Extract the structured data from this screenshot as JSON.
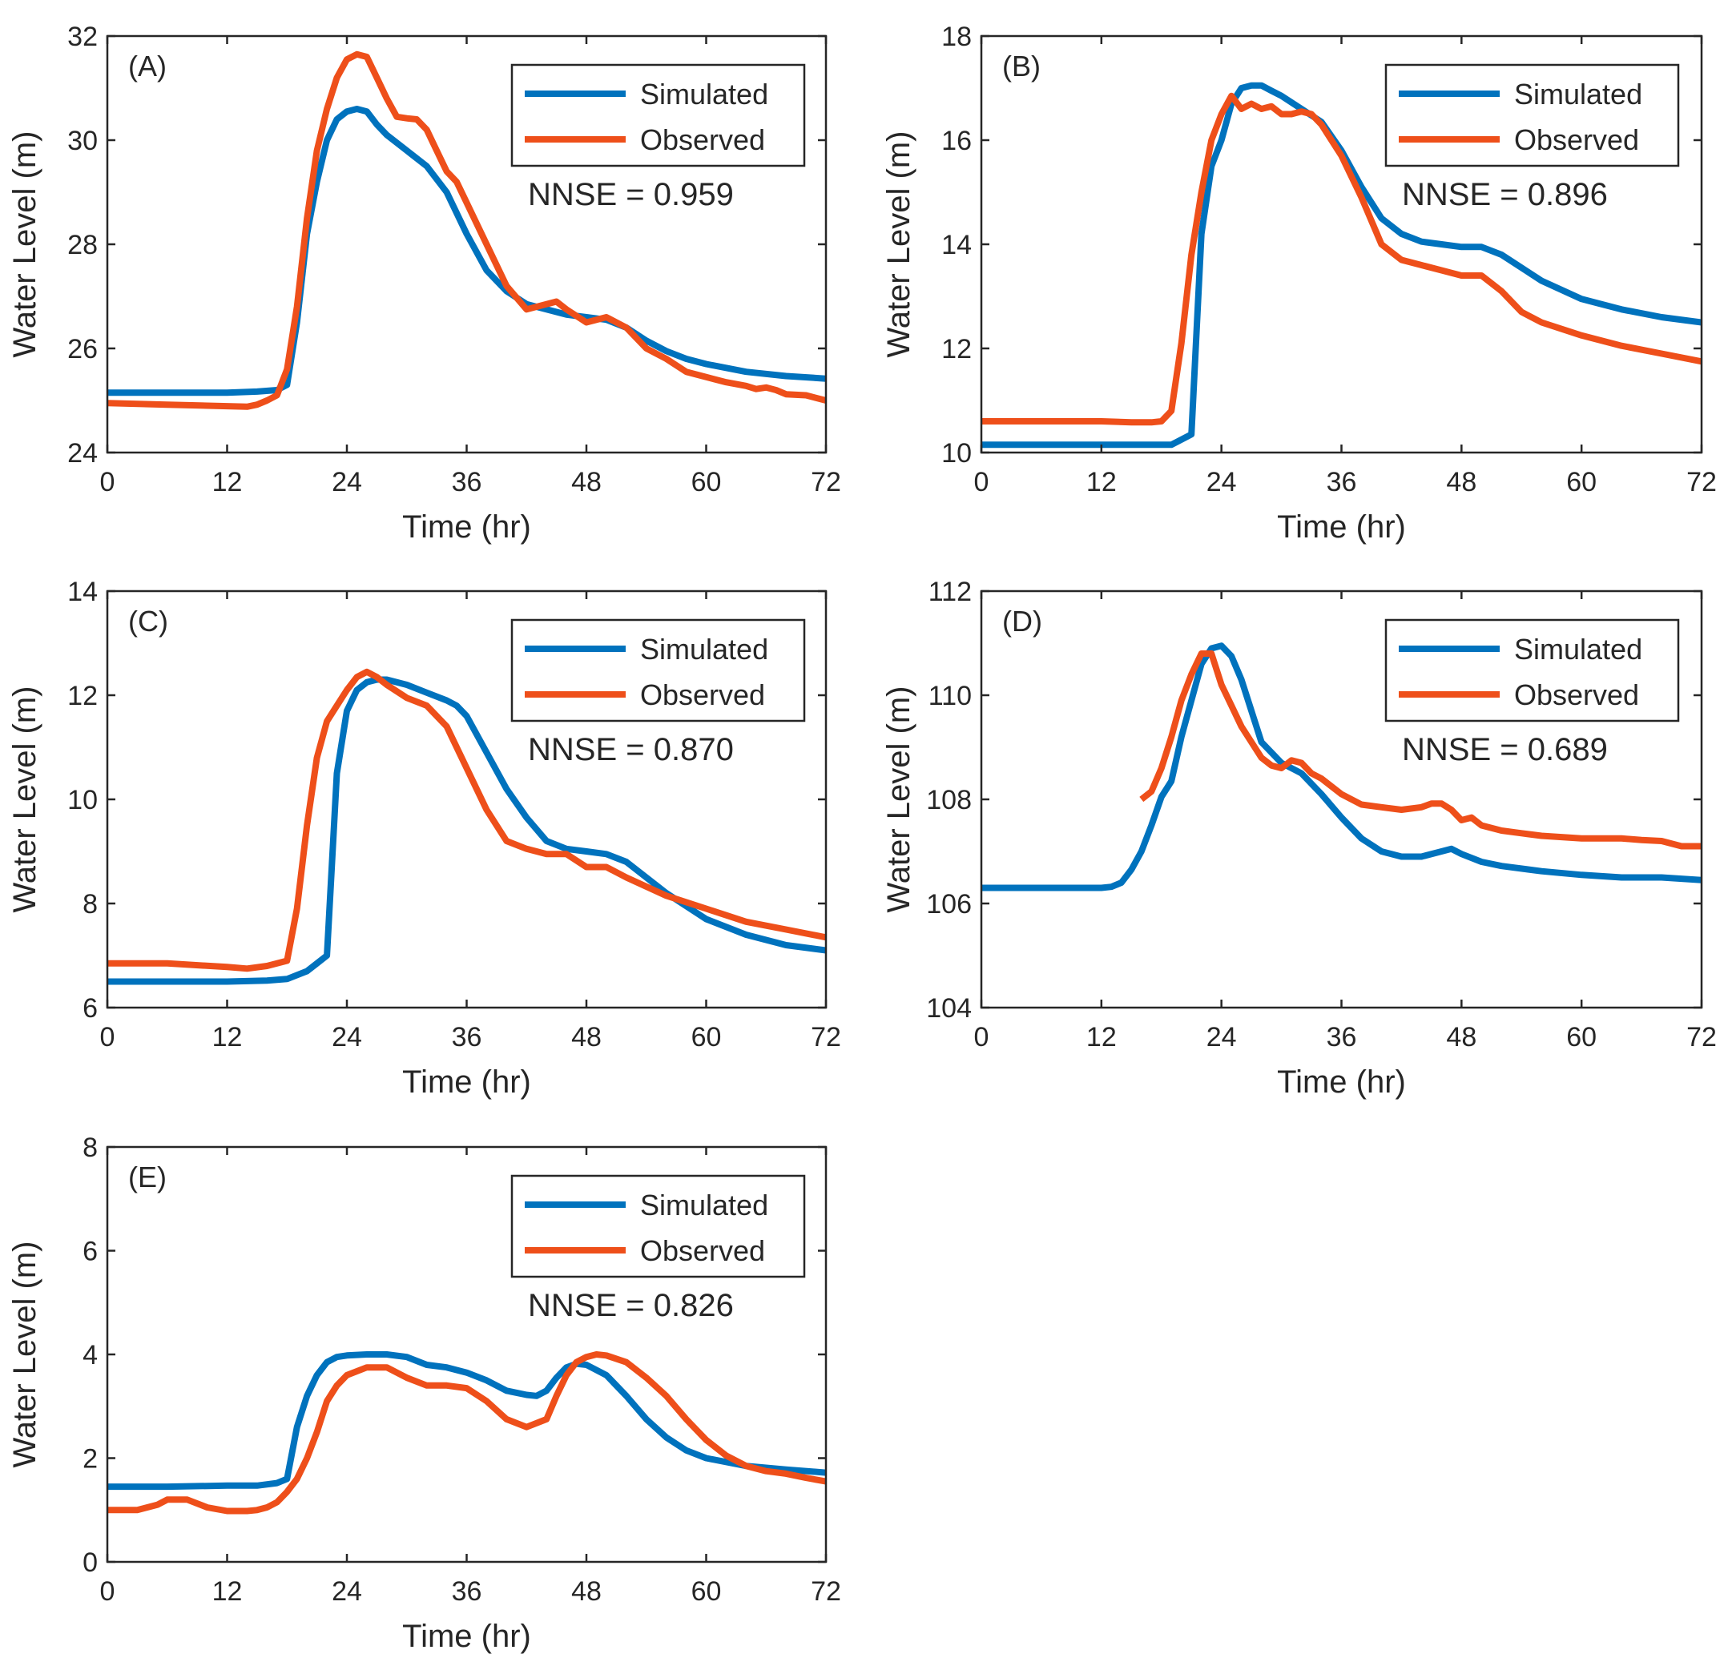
{
  "figure": {
    "background": "#ffffff",
    "axis_color": "#262626"
  },
  "series_colors": {
    "Simulated": "#0072BD",
    "Observed": "#EE4F1A"
  },
  "chart_data": [
    {
      "type": "line",
      "panel": "(A)",
      "xlabel": "Time (hr)",
      "ylabel": "Water Level (m)",
      "xlim": [
        0,
        72
      ],
      "ylim": [
        24,
        32
      ],
      "xticks": [
        0,
        12,
        24,
        36,
        48,
        60,
        72
      ],
      "yticks": [
        24,
        26,
        28,
        30,
        32
      ],
      "legend": [
        "Simulated",
        "Observed"
      ],
      "legend_position": "top-right",
      "annotation": "NNSE = 0.959",
      "series": [
        {
          "name": "Simulated",
          "x": [
            0,
            6,
            12,
            15,
            17,
            18,
            19,
            20,
            21,
            22,
            23,
            24,
            25,
            26,
            27,
            28,
            30,
            32,
            34,
            36,
            38,
            40,
            42,
            44,
            46,
            48,
            50,
            52,
            54,
            56,
            58,
            60,
            64,
            68,
            72
          ],
          "y": [
            25.15,
            25.15,
            25.15,
            25.17,
            25.2,
            25.3,
            26.5,
            28.2,
            29.2,
            30.0,
            30.4,
            30.55,
            30.6,
            30.55,
            30.3,
            30.1,
            29.8,
            29.5,
            29.0,
            28.2,
            27.5,
            27.1,
            26.85,
            26.75,
            26.65,
            26.6,
            26.55,
            26.4,
            26.15,
            25.95,
            25.8,
            25.7,
            25.55,
            25.47,
            25.42
          ]
        },
        {
          "name": "Observed",
          "x": [
            0,
            6,
            10,
            14,
            15,
            16,
            17,
            18,
            19,
            20,
            21,
            22,
            23,
            24,
            25,
            26,
            27,
            28,
            29,
            30,
            31,
            32,
            33,
            34,
            35,
            36,
            38,
            40,
            42,
            44,
            45,
            46,
            48,
            49,
            50,
            52,
            54,
            56,
            58,
            60,
            62,
            64,
            65,
            66,
            67,
            68,
            70,
            72
          ],
          "y": [
            24.95,
            24.92,
            24.9,
            24.88,
            24.92,
            25.0,
            25.1,
            25.6,
            26.8,
            28.5,
            29.8,
            30.6,
            31.2,
            31.55,
            31.65,
            31.6,
            31.2,
            30.8,
            30.45,
            30.42,
            30.4,
            30.2,
            29.8,
            29.4,
            29.2,
            28.8,
            28.0,
            27.2,
            26.75,
            26.85,
            26.9,
            26.75,
            26.5,
            26.55,
            26.6,
            26.4,
            26.0,
            25.8,
            25.55,
            25.45,
            25.35,
            25.28,
            25.22,
            25.25,
            25.2,
            25.12,
            25.1,
            25.0
          ]
        }
      ]
    },
    {
      "type": "line",
      "panel": "(B)",
      "xlabel": "Time (hr)",
      "ylabel": "Water Level (m)",
      "xlim": [
        0,
        72
      ],
      "ylim": [
        10,
        18
      ],
      "xticks": [
        0,
        12,
        24,
        36,
        48,
        60,
        72
      ],
      "yticks": [
        10,
        12,
        14,
        16,
        18
      ],
      "legend": [
        "Simulated",
        "Observed"
      ],
      "legend_position": "top-right",
      "annotation": "NNSE = 0.896",
      "series": [
        {
          "name": "Simulated",
          "x": [
            0,
            6,
            12,
            16,
            19,
            20,
            21,
            22,
            23,
            24,
            25,
            26,
            27,
            28,
            29,
            30,
            32,
            34,
            36,
            38,
            40,
            42,
            44,
            46,
            48,
            50,
            52,
            56,
            60,
            64,
            68,
            72
          ],
          "y": [
            10.15,
            10.15,
            10.15,
            10.15,
            10.15,
            10.25,
            10.35,
            14.2,
            15.5,
            16.0,
            16.7,
            17.0,
            17.05,
            17.05,
            16.95,
            16.85,
            16.6,
            16.35,
            15.8,
            15.1,
            14.5,
            14.2,
            14.05,
            14.0,
            13.95,
            13.95,
            13.8,
            13.3,
            12.95,
            12.75,
            12.6,
            12.5
          ]
        },
        {
          "name": "Observed",
          "x": [
            0,
            6,
            12,
            15,
            17,
            18,
            19,
            20,
            21,
            22,
            23,
            24,
            25,
            26,
            27,
            28,
            29,
            30,
            31,
            32,
            33,
            34,
            36,
            38,
            40,
            42,
            44,
            46,
            48,
            50,
            52,
            54,
            56,
            60,
            64,
            68,
            72
          ],
          "y": [
            10.6,
            10.6,
            10.6,
            10.58,
            10.58,
            10.6,
            10.8,
            12.1,
            13.8,
            15.0,
            16.0,
            16.5,
            16.85,
            16.6,
            16.7,
            16.6,
            16.65,
            16.5,
            16.5,
            16.55,
            16.5,
            16.3,
            15.7,
            14.9,
            14.0,
            13.7,
            13.6,
            13.5,
            13.4,
            13.4,
            13.1,
            12.7,
            12.5,
            12.25,
            12.05,
            11.9,
            11.75
          ]
        }
      ]
    },
    {
      "type": "line",
      "panel": "(C)",
      "xlabel": "Time (hr)",
      "ylabel": "Water Level (m)",
      "xlim": [
        0,
        72
      ],
      "ylim": [
        6,
        14
      ],
      "xticks": [
        0,
        12,
        24,
        36,
        48,
        60,
        72
      ],
      "yticks": [
        6,
        8,
        10,
        12,
        14
      ],
      "legend": [
        "Simulated",
        "Observed"
      ],
      "legend_position": "top-right",
      "annotation": "NNSE = 0.870",
      "series": [
        {
          "name": "Simulated",
          "x": [
            0,
            6,
            12,
            16,
            18,
            20,
            21,
            22,
            23,
            24,
            25,
            26,
            27,
            28,
            30,
            32,
            34,
            35,
            36,
            38,
            40,
            42,
            44,
            46,
            48,
            50,
            52,
            56,
            60,
            64,
            68,
            72
          ],
          "y": [
            6.5,
            6.5,
            6.5,
            6.52,
            6.55,
            6.7,
            6.85,
            7.0,
            10.5,
            11.7,
            12.1,
            12.25,
            12.3,
            12.3,
            12.2,
            12.05,
            11.9,
            11.8,
            11.6,
            10.9,
            10.2,
            9.65,
            9.2,
            9.05,
            9.0,
            8.95,
            8.8,
            8.2,
            7.7,
            7.4,
            7.2,
            7.1
          ]
        },
        {
          "name": "Observed",
          "x": [
            0,
            6,
            12,
            14,
            16,
            18,
            19,
            20,
            21,
            22,
            23,
            24,
            25,
            26,
            27,
            28,
            30,
            32,
            34,
            36,
            38,
            40,
            42,
            44,
            46,
            48,
            50,
            52,
            56,
            60,
            64,
            68,
            72
          ],
          "y": [
            6.85,
            6.85,
            6.78,
            6.75,
            6.8,
            6.9,
            7.9,
            9.5,
            10.8,
            11.5,
            11.8,
            12.1,
            12.35,
            12.45,
            12.35,
            12.2,
            11.95,
            11.8,
            11.4,
            10.6,
            9.8,
            9.2,
            9.05,
            8.95,
            8.95,
            8.7,
            8.7,
            8.5,
            8.15,
            7.9,
            7.65,
            7.5,
            7.35
          ]
        }
      ]
    },
    {
      "type": "line",
      "panel": "(D)",
      "xlabel": "Time (hr)",
      "ylabel": "Water Level (m)",
      "xlim": [
        0,
        72
      ],
      "ylim": [
        104,
        112
      ],
      "xticks": [
        0,
        12,
        24,
        36,
        48,
        60,
        72
      ],
      "yticks": [
        104,
        106,
        108,
        110,
        112
      ],
      "legend": [
        "Simulated",
        "Observed"
      ],
      "legend_position": "top-right",
      "annotation": "NNSE = 0.689",
      "series": [
        {
          "name": "Simulated",
          "x": [
            0,
            6,
            10,
            12,
            13,
            14,
            15,
            16,
            17,
            18,
            19,
            20,
            21,
            22,
            23,
            24,
            25,
            26,
            27,
            28,
            30,
            32,
            34,
            36,
            38,
            40,
            42,
            44,
            46,
            47,
            48,
            50,
            52,
            56,
            60,
            64,
            68,
            72
          ],
          "y": [
            106.3,
            106.3,
            106.3,
            106.3,
            106.32,
            106.4,
            106.65,
            107.0,
            107.5,
            108.05,
            108.35,
            109.2,
            109.9,
            110.6,
            110.9,
            110.95,
            110.75,
            110.3,
            109.7,
            109.1,
            108.7,
            108.5,
            108.1,
            107.65,
            107.25,
            107.0,
            106.9,
            106.9,
            107.0,
            107.05,
            106.95,
            106.8,
            106.72,
            106.62,
            106.55,
            106.5,
            106.5,
            106.45
          ]
        },
        {
          "name": "Observed",
          "x": [
            16,
            17,
            18,
            19,
            20,
            21,
            22,
            23,
            24,
            25,
            26,
            27,
            28,
            29,
            30,
            31,
            32,
            33,
            34,
            36,
            38,
            40,
            42,
            44,
            45,
            46,
            47,
            48,
            49,
            50,
            52,
            54,
            56,
            60,
            64,
            66,
            68,
            70,
            72
          ],
          "y": [
            108.0,
            108.15,
            108.6,
            109.2,
            109.9,
            110.4,
            110.8,
            110.8,
            110.2,
            109.8,
            109.4,
            109.1,
            108.8,
            108.65,
            108.6,
            108.75,
            108.7,
            108.5,
            108.4,
            108.1,
            107.9,
            107.85,
            107.8,
            107.85,
            107.92,
            107.92,
            107.8,
            107.6,
            107.65,
            107.5,
            107.4,
            107.35,
            107.3,
            107.25,
            107.25,
            107.22,
            107.2,
            107.1,
            107.1
          ]
        }
      ]
    },
    {
      "type": "line",
      "panel": "(E)",
      "xlabel": "Time (hr)",
      "ylabel": "Water Level (m)",
      "xlim": [
        0,
        72
      ],
      "ylim": [
        0,
        8
      ],
      "xticks": [
        0,
        12,
        24,
        36,
        48,
        60,
        72
      ],
      "yticks": [
        0,
        2,
        4,
        6,
        8
      ],
      "legend": [
        "Simulated",
        "Observed"
      ],
      "legend_position": "top-right",
      "annotation": "NNSE = 0.826",
      "series": [
        {
          "name": "Simulated",
          "x": [
            0,
            6,
            12,
            15,
            17,
            18,
            19,
            20,
            21,
            22,
            23,
            24,
            26,
            28,
            30,
            32,
            34,
            36,
            38,
            40,
            42,
            43,
            44,
            45,
            46,
            47,
            48,
            50,
            52,
            54,
            56,
            58,
            60,
            64,
            68,
            72
          ],
          "y": [
            1.45,
            1.45,
            1.47,
            1.47,
            1.52,
            1.6,
            2.6,
            3.2,
            3.6,
            3.85,
            3.95,
            3.98,
            4.0,
            4.0,
            3.95,
            3.8,
            3.75,
            3.65,
            3.5,
            3.3,
            3.22,
            3.2,
            3.3,
            3.55,
            3.75,
            3.82,
            3.8,
            3.6,
            3.2,
            2.75,
            2.4,
            2.15,
            2.0,
            1.85,
            1.78,
            1.72
          ]
        },
        {
          "name": "Observed",
          "x": [
            0,
            3,
            5,
            6,
            7,
            8,
            10,
            12,
            14,
            15,
            16,
            17,
            18,
            19,
            20,
            21,
            22,
            23,
            24,
            26,
            28,
            30,
            32,
            34,
            36,
            38,
            40,
            42,
            44,
            45,
            46,
            47,
            48,
            49,
            50,
            52,
            54,
            56,
            58,
            60,
            62,
            64,
            66,
            68,
            70,
            72
          ],
          "y": [
            1.0,
            1.0,
            1.1,
            1.2,
            1.2,
            1.2,
            1.05,
            0.98,
            0.98,
            1.0,
            1.05,
            1.15,
            1.35,
            1.6,
            2.0,
            2.5,
            3.1,
            3.4,
            3.6,
            3.75,
            3.75,
            3.55,
            3.4,
            3.4,
            3.35,
            3.1,
            2.75,
            2.6,
            2.75,
            3.2,
            3.6,
            3.85,
            3.95,
            4.0,
            3.98,
            3.85,
            3.55,
            3.2,
            2.75,
            2.35,
            2.05,
            1.85,
            1.75,
            1.7,
            1.62,
            1.55
          ]
        }
      ]
    }
  ]
}
